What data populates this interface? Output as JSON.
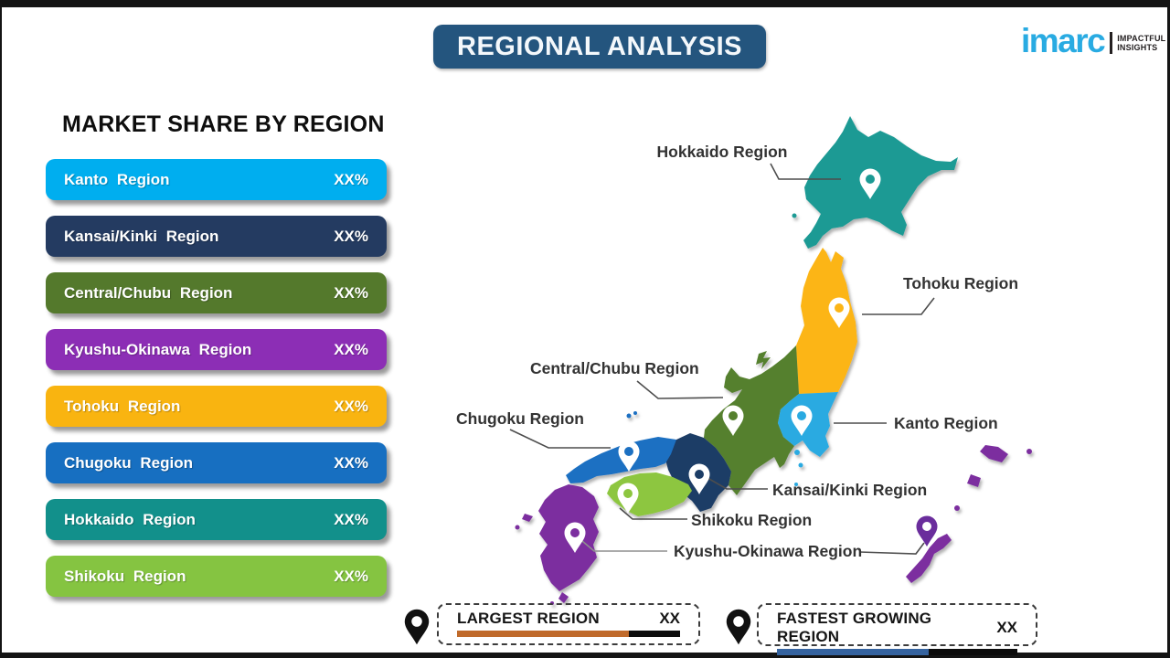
{
  "header": {
    "title": "REGIONAL ANALYSIS",
    "logo": {
      "brand": "imarc",
      "tagline1": "IMPACTFUL",
      "tagline2": "INSIGHTS",
      "brand_color": "#29abe2"
    }
  },
  "market_share": {
    "heading": "MARKET SHARE BY REGION",
    "items": [
      {
        "label": "Kanto Region",
        "value": "XX%",
        "color": "#00aeef"
      },
      {
        "label": "Kansai/Kinki Region",
        "value": "XX%",
        "color": "#243b61"
      },
      {
        "label": "Central/Chubu Region",
        "value": "XX%",
        "color": "#54792c"
      },
      {
        "label": "Kyushu-Okinawa Region",
        "value": "XX%",
        "color": "#8c2eb5"
      },
      {
        "label": "Tohoku Region",
        "value": "XX%",
        "color": "#f9b410"
      },
      {
        "label": "Chugoku Region",
        "value": "XX%",
        "color": "#176fc1"
      },
      {
        "label": "Hokkaido Region",
        "value": "XX%",
        "color": "#12908b"
      },
      {
        "label": "Shikoku Region",
        "value": "XX%",
        "color": "#85c441"
      }
    ]
  },
  "map": {
    "pin_color": "#ffffff",
    "okinawa_pin_color": "#6a2d9c",
    "regions": [
      {
        "id": "hokkaido",
        "label": "Hokkaido Region",
        "color": "#1a9a94"
      },
      {
        "id": "tohoku",
        "label": "Tohoku Region",
        "color": "#fcb515"
      },
      {
        "id": "kanto",
        "label": "Kanto Region",
        "color": "#29aae1"
      },
      {
        "id": "chubu",
        "label": "Central/Chubu Region",
        "color": "#55802f"
      },
      {
        "id": "kansai",
        "label": "Kansai/Kinki Region",
        "color": "#1f3c66"
      },
      {
        "id": "chugoku",
        "label": "Chugoku Region",
        "color": "#1b6fc2"
      },
      {
        "id": "shikoku",
        "label": "Shikoku Region",
        "color": "#8dc63f"
      },
      {
        "id": "kyushu_okinawa",
        "label": "Kyushu-Okinawa Region",
        "color": "#7b2f9f"
      }
    ]
  },
  "legend": {
    "pin_color": "#111111",
    "largest": {
      "label": "LARGEST REGION",
      "value": "XX",
      "bar_color": "#c06a2b",
      "fill_pct": 77
    },
    "fastest": {
      "label": "FASTEST GROWING REGION",
      "value": "XX",
      "bar_color": "#35639f",
      "fill_pct": 63
    }
  }
}
